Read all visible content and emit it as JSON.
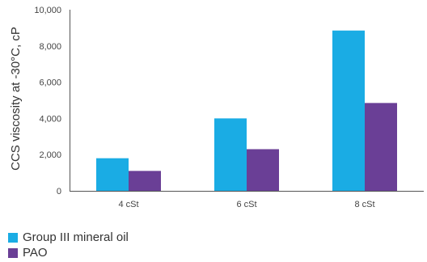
{
  "chart_data": {
    "type": "bar",
    "title": "",
    "xlabel": "",
    "ylabel": "CCS viscosity at -30°C, cP",
    "ylim": [
      0,
      10000
    ],
    "yticks": [
      0,
      2000,
      4000,
      6000,
      8000,
      10000
    ],
    "ytick_labels": [
      "0",
      "2,000",
      "4,000",
      "6,000",
      "8,000",
      "10,000"
    ],
    "categories": [
      "4 cSt",
      "6 cSt",
      "8 cSt"
    ],
    "series": [
      {
        "name": "Group III mineral oil",
        "color": "#1aace4",
        "values": [
          1800,
          4000,
          8850
        ]
      },
      {
        "name": "PAO",
        "color": "#6a3f96",
        "values": [
          1100,
          2300,
          4850
        ]
      }
    ],
    "legend_position": "bottom-left",
    "grid": false
  }
}
